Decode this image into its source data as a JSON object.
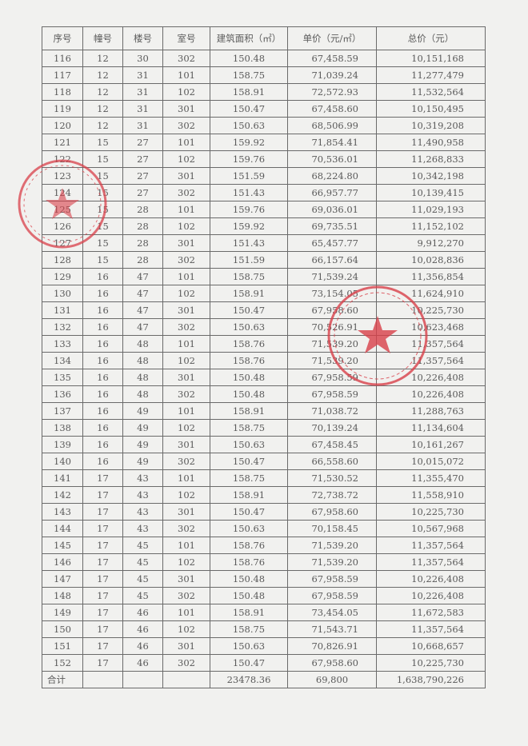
{
  "table": {
    "headers": [
      "序号",
      "幢号",
      "楼号",
      "室号",
      "建筑面积（㎡）",
      "单价（元/㎡）",
      "总价（元）"
    ],
    "rows": [
      [
        "116",
        "12",
        "30",
        "302",
        "150.48",
        "67,458.59",
        "10,151,168"
      ],
      [
        "117",
        "12",
        "31",
        "101",
        "158.75",
        "71,039.24",
        "11,277,479"
      ],
      [
        "118",
        "12",
        "31",
        "102",
        "158.91",
        "72,572.93",
        "11,532,564"
      ],
      [
        "119",
        "12",
        "31",
        "301",
        "150.47",
        "67,458.60",
        "10,150,495"
      ],
      [
        "120",
        "12",
        "31",
        "302",
        "150.63",
        "68,506.99",
        "10,319,208"
      ],
      [
        "121",
        "15",
        "27",
        "101",
        "159.92",
        "71,854.41",
        "11,490,958"
      ],
      [
        "122",
        "15",
        "27",
        "102",
        "159.76",
        "70,536.01",
        "11,268,833"
      ],
      [
        "123",
        "15",
        "27",
        "301",
        "151.59",
        "68,224.80",
        "10,342,198"
      ],
      [
        "124",
        "15",
        "27",
        "302",
        "151.43",
        "66,957.77",
        "10,139,415"
      ],
      [
        "125",
        "15",
        "28",
        "101",
        "159.76",
        "69,036.01",
        "11,029,193"
      ],
      [
        "126",
        "15",
        "28",
        "102",
        "159.92",
        "69,735.51",
        "11,152,102"
      ],
      [
        "127",
        "15",
        "28",
        "301",
        "151.43",
        "65,457.77",
        "9,912,270"
      ],
      [
        "128",
        "15",
        "28",
        "302",
        "151.59",
        "66,157.64",
        "10,028,836"
      ],
      [
        "129",
        "16",
        "47",
        "101",
        "158.75",
        "71,539.24",
        "11,356,854"
      ],
      [
        "130",
        "16",
        "47",
        "102",
        "158.91",
        "73,154.05",
        "11,624,910"
      ],
      [
        "131",
        "16",
        "47",
        "301",
        "150.47",
        "67,958.60",
        "10,225,730"
      ],
      [
        "132",
        "16",
        "47",
        "302",
        "150.63",
        "70,526.91",
        "10,623,468"
      ],
      [
        "133",
        "16",
        "48",
        "101",
        "158.76",
        "71,539.20",
        "11,357,564"
      ],
      [
        "134",
        "16",
        "48",
        "102",
        "158.76",
        "71,539.20",
        "11,357,564"
      ],
      [
        "135",
        "16",
        "48",
        "301",
        "150.48",
        "67,958.59",
        "10,226,408"
      ],
      [
        "136",
        "16",
        "48",
        "302",
        "150.48",
        "67,958.59",
        "10,226,408"
      ],
      [
        "137",
        "16",
        "49",
        "101",
        "158.91",
        "71,038.72",
        "11,288,763"
      ],
      [
        "138",
        "16",
        "49",
        "102",
        "158.75",
        "70,139.24",
        "11,134,604"
      ],
      [
        "139",
        "16",
        "49",
        "301",
        "150.63",
        "67,458.45",
        "10,161,267"
      ],
      [
        "140",
        "16",
        "49",
        "302",
        "150.47",
        "66,558.60",
        "10,015,072"
      ],
      [
        "141",
        "17",
        "43",
        "101",
        "158.75",
        "71,530.52",
        "11,355,470"
      ],
      [
        "142",
        "17",
        "43",
        "102",
        "158.91",
        "72,738.72",
        "11,558,910"
      ],
      [
        "143",
        "17",
        "43",
        "301",
        "150.47",
        "67,958.60",
        "10,225,730"
      ],
      [
        "144",
        "17",
        "43",
        "302",
        "150.63",
        "70,158.45",
        "10,567,968"
      ],
      [
        "145",
        "17",
        "45",
        "101",
        "158.76",
        "71,539.20",
        "11,357,564"
      ],
      [
        "146",
        "17",
        "45",
        "102",
        "158.76",
        "71,539.20",
        "11,357,564"
      ],
      [
        "147",
        "17",
        "45",
        "301",
        "150.48",
        "67,958.59",
        "10,226,408"
      ],
      [
        "148",
        "17",
        "45",
        "302",
        "150.48",
        "67,958.59",
        "10,226,408"
      ],
      [
        "149",
        "17",
        "46",
        "101",
        "158.91",
        "73,454.05",
        "11,672,583"
      ],
      [
        "150",
        "17",
        "46",
        "102",
        "158.75",
        "71,543.71",
        "11,357,564"
      ],
      [
        "151",
        "17",
        "46",
        "301",
        "150.63",
        "70,826.91",
        "10,668,657"
      ],
      [
        "152",
        "17",
        "46",
        "302",
        "150.47",
        "67,958.60",
        "10,225,730"
      ]
    ],
    "total": {
      "label": "合计",
      "area": "23478.36",
      "unit_price": "69,800",
      "total_price": "1,638,790,226"
    }
  },
  "stamps": {
    "color": "#d9404a",
    "icon": "star-icon"
  }
}
